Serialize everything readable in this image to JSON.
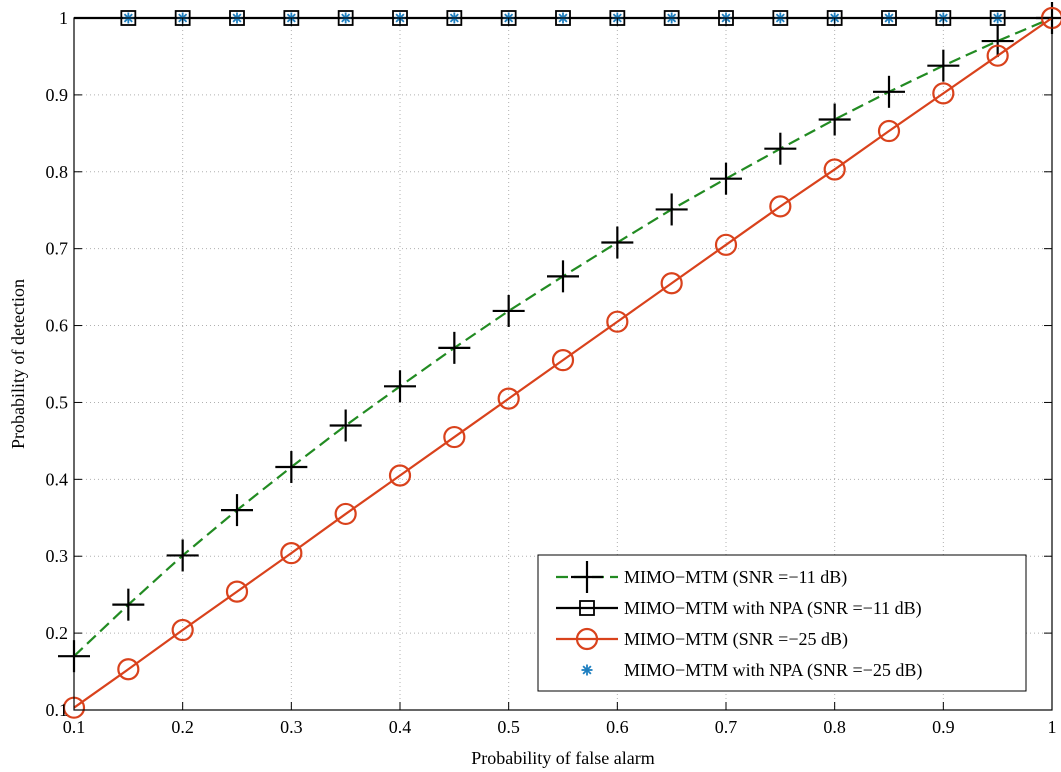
{
  "chart_data": {
    "type": "line",
    "title": "",
    "xlabel": "Probability of false alarm",
    "ylabel": "Probability of detection",
    "xlim": [
      0.1,
      1
    ],
    "ylim": [
      0.1,
      1
    ],
    "xticks": [
      0.1,
      0.2,
      0.3,
      0.4,
      0.5,
      0.6,
      0.7,
      0.8,
      0.9,
      1
    ],
    "yticks": [
      0.1,
      0.2,
      0.3,
      0.4,
      0.5,
      0.6,
      0.7,
      0.8,
      0.9,
      1
    ],
    "xtick_labels": [
      "0.1",
      "0.2",
      "0.3",
      "0.4",
      "0.5",
      "0.6",
      "0.7",
      "0.8",
      "0.9",
      "1"
    ],
    "ytick_labels": [
      "0.1",
      "0.2",
      "0.3",
      "0.4",
      "0.5",
      "0.6",
      "0.7",
      "0.8",
      "0.9",
      "1"
    ],
    "grid": true,
    "legend_position": "bottom-right",
    "x": [
      0.1,
      0.15,
      0.2,
      0.25,
      0.3,
      0.35,
      0.4,
      0.45,
      0.5,
      0.55,
      0.6,
      0.65,
      0.7,
      0.75,
      0.8,
      0.85,
      0.9,
      0.95,
      1.0
    ],
    "series": [
      {
        "name": "MIMO−MTM (SNR =−11 dB)",
        "line_color": "#228b22",
        "marker_color": "#000000",
        "line_style": "dashed",
        "marker": "plus",
        "values": [
          0.17,
          0.237,
          0.301,
          0.36,
          0.416,
          0.47,
          0.521,
          0.571,
          0.619,
          0.664,
          0.708,
          0.751,
          0.791,
          0.83,
          0.868,
          0.904,
          0.938,
          0.97,
          1.0
        ]
      },
      {
        "name": "MIMO−MTM with NPA (SNR =−11 dB)",
        "line_color": "#000000",
        "marker_color": "#000000",
        "line_style": "solid",
        "marker": "square",
        "values": [
          1,
          1,
          1,
          1,
          1,
          1,
          1,
          1,
          1,
          1,
          1,
          1,
          1,
          1,
          1,
          1,
          1,
          1,
          1
        ]
      },
      {
        "name": "MIMO−MTM (SNR =−25 dB)",
        "line_color": "#d9421c",
        "marker_color": "#d9421c",
        "line_style": "solid",
        "marker": "circle",
        "values": [
          0.103,
          0.153,
          0.204,
          0.254,
          0.304,
          0.355,
          0.405,
          0.455,
          0.505,
          0.555,
          0.605,
          0.655,
          0.705,
          0.755,
          0.803,
          0.853,
          0.902,
          0.951,
          1.0
        ]
      },
      {
        "name": "MIMO−MTM with NPA (SNR =−25 dB)",
        "line_color": "none",
        "marker_color": "#1e7fc0",
        "line_style": "none",
        "marker": "asterisk",
        "values": [
          1,
          1,
          1,
          1,
          1,
          1,
          1,
          1,
          1,
          1,
          1,
          1,
          1,
          1,
          1,
          1,
          1,
          1,
          1
        ]
      }
    ]
  }
}
